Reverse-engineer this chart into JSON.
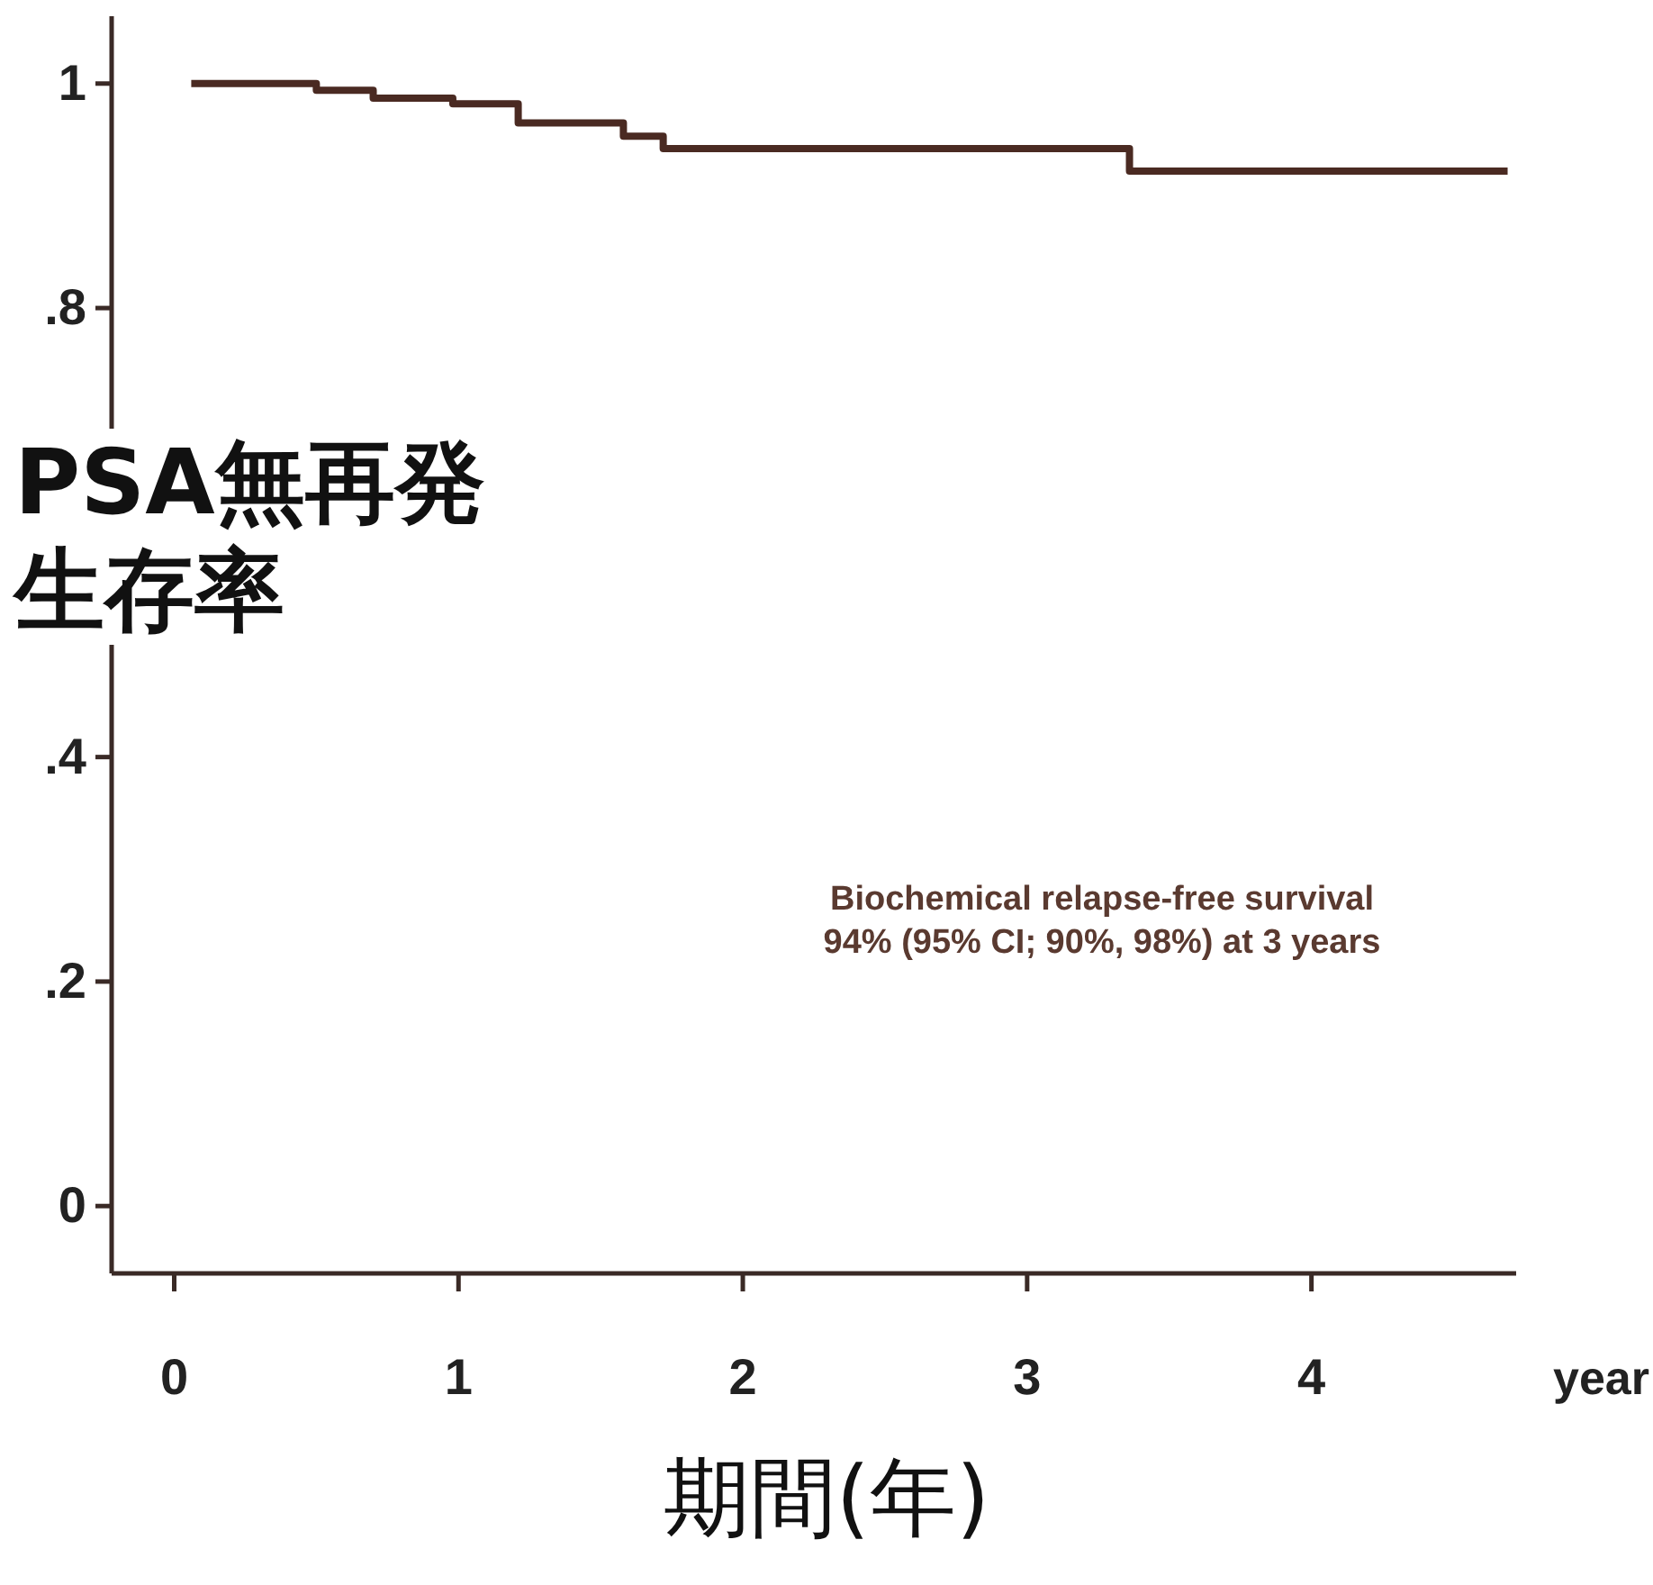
{
  "chart_data": {
    "type": "step",
    "ylabel": "PSA無再発生存率",
    "xlabel": "期間(年)",
    "annotations": [
      "Biochemical relapse-free survival\n94% (95% CI; 90%, 98%) at 3 years",
      "year"
    ],
    "series": [
      {
        "color": "#4a2a22",
        "x": [
          0.06,
          0.5,
          0.7,
          0.98,
          1.21,
          1.58,
          1.72,
          3.36,
          4.69
        ],
        "values": [
          1.0,
          0.994,
          0.987,
          0.982,
          0.965,
          0.953,
          0.942,
          0.922,
          0.922
        ]
      }
    ],
    "xlim": [
      -0.22,
      4.72
    ],
    "xticks": [
      0,
      1,
      2,
      3,
      4
    ],
    "ylim": [
      -0.06,
      1.06
    ],
    "yticks": [
      {
        "value": 0,
        "label": "0"
      },
      {
        "value": 0.2,
        "label": ".2"
      },
      {
        "value": 0.4,
        "label": ".4"
      },
      {
        "value": 0.8,
        "label": ".8"
      },
      {
        "value": 1,
        "label": "1"
      }
    ],
    "grid": false
  }
}
